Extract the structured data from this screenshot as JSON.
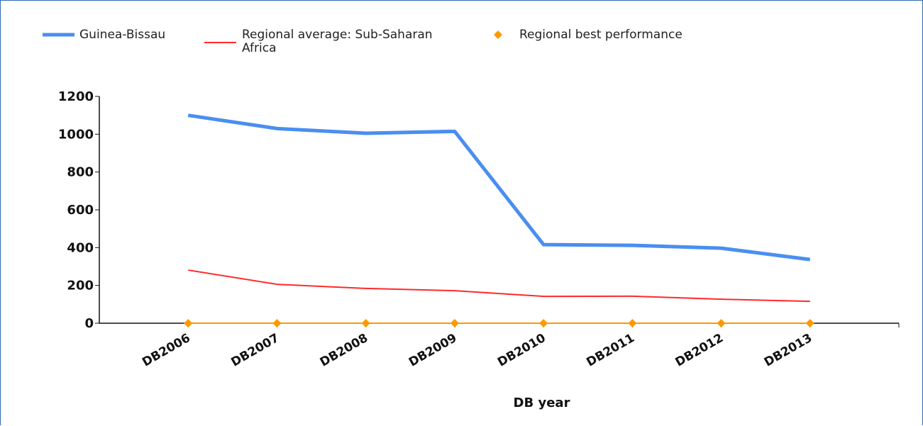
{
  "chart_data": {
    "type": "line",
    "x_label": "DB year",
    "categories": [
      "DB2006",
      "DB2007",
      "DB2008",
      "DB2009",
      "DB2010",
      "DB2011",
      "DB2012",
      "DB2013"
    ],
    "series": [
      {
        "name": "Guinea-Bissau",
        "color": "#4a8ef0",
        "values": [
          1100,
          1030,
          1005,
          1015,
          416,
          412,
          397,
          337
        ]
      },
      {
        "name": "Regional average: Sub-Saharan Africa",
        "color": "#ff2a2a",
        "values": [
          281,
          206,
          184,
          172,
          142,
          143,
          127,
          116
        ]
      },
      {
        "name": "Regional best performance",
        "color": "#ff9900",
        "marker": "diamond",
        "values": [
          0,
          0,
          0,
          0,
          0,
          0,
          0,
          0
        ]
      }
    ],
    "ylim": [
      0,
      1200
    ],
    "yticks": [
      0,
      200,
      400,
      600,
      800,
      1000,
      1200
    ],
    "grid": false
  }
}
